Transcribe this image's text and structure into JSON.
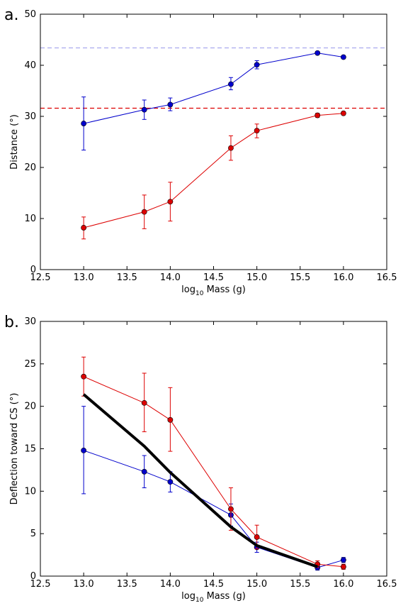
{
  "chart_data": [
    {
      "type": "line",
      "panel_label": "a.",
      "xlabel_prefix": "log",
      "xlabel_sub": "10",
      "xlabel_suffix": " Mass (g)",
      "ylabel": "Distance (°)",
      "xlim": [
        12.5,
        16.5
      ],
      "ylim": [
        0,
        50
      ],
      "xticks": [
        "12.5",
        "13.0",
        "13.5",
        "14.0",
        "14.5",
        "15.0",
        "15.5",
        "16.0",
        "16.5"
      ],
      "yticks": [
        "0",
        "10",
        "20",
        "30",
        "40",
        "50"
      ],
      "grid": false,
      "series": [
        {
          "color": "#0000cc",
          "x": [
            13.0,
            13.7,
            14.0,
            14.7,
            15.0,
            15.7,
            16.0
          ],
          "y": [
            28.6,
            31.3,
            32.3,
            36.3,
            40.1,
            42.4,
            41.6
          ],
          "err_low": [
            23.4,
            29.4,
            31.1,
            35.2,
            39.3,
            42.1,
            41.3
          ],
          "err_high": [
            33.8,
            33.2,
            33.6,
            37.6,
            40.9,
            42.7,
            41.9
          ]
        },
        {
          "color": "#dd0000",
          "x": [
            13.0,
            13.7,
            14.0,
            14.7,
            15.0,
            15.7,
            16.0
          ],
          "y": [
            8.2,
            11.3,
            13.3,
            23.8,
            27.2,
            30.2,
            30.6
          ],
          "err_low": [
            6.0,
            8.0,
            9.5,
            21.4,
            25.8,
            29.8,
            30.3
          ],
          "err_high": [
            10.3,
            14.6,
            17.1,
            26.2,
            28.5,
            30.6,
            30.9
          ]
        }
      ],
      "reference_lines": [
        {
          "y": 43.4,
          "color": "#aaaaee"
        },
        {
          "y": 31.6,
          "color": "#dd0000"
        }
      ]
    },
    {
      "type": "line",
      "panel_label": "b.",
      "xlabel_prefix": "log",
      "xlabel_sub": "10",
      "xlabel_suffix": " Mass (g)",
      "ylabel": "Deflection toward CS (°)",
      "xlim": [
        12.5,
        16.5
      ],
      "ylim": [
        0,
        30
      ],
      "xticks": [
        "12.5",
        "13.0",
        "13.5",
        "14.0",
        "14.5",
        "15.0",
        "15.5",
        "16.0",
        "16.5"
      ],
      "yticks": [
        "0",
        "5",
        "10",
        "15",
        "20",
        "25",
        "30"
      ],
      "grid": false,
      "series": [
        {
          "color": "#0000cc",
          "x": [
            13.0,
            13.7,
            14.0,
            14.7,
            15.0,
            15.7,
            16.0
          ],
          "y": [
            14.8,
            12.3,
            11.1,
            7.2,
            3.4,
            1.0,
            1.9
          ],
          "err_low": [
            9.7,
            10.4,
            9.9,
            5.9,
            2.8,
            0.7,
            1.6
          ],
          "err_high": [
            20.0,
            14.2,
            12.3,
            8.5,
            4.0,
            1.3,
            2.2
          ]
        },
        {
          "color": "#dd0000",
          "x": [
            13.0,
            13.7,
            14.0,
            14.7,
            15.0,
            15.7,
            16.0
          ],
          "y": [
            23.5,
            20.4,
            18.4,
            7.9,
            4.6,
            1.4,
            1.1
          ],
          "err_low": [
            21.2,
            17.0,
            14.7,
            5.4,
            3.2,
            1.0,
            0.8
          ],
          "err_high": [
            25.8,
            23.9,
            22.2,
            10.4,
            6.0,
            1.8,
            1.4
          ]
        },
        {
          "color": "#000000",
          "thick": true,
          "x": [
            13.0,
            13.7,
            14.0,
            14.7,
            15.0,
            15.7
          ],
          "y": [
            21.4,
            15.3,
            12.2,
            5.8,
            3.6,
            1.1
          ]
        }
      ]
    }
  ]
}
